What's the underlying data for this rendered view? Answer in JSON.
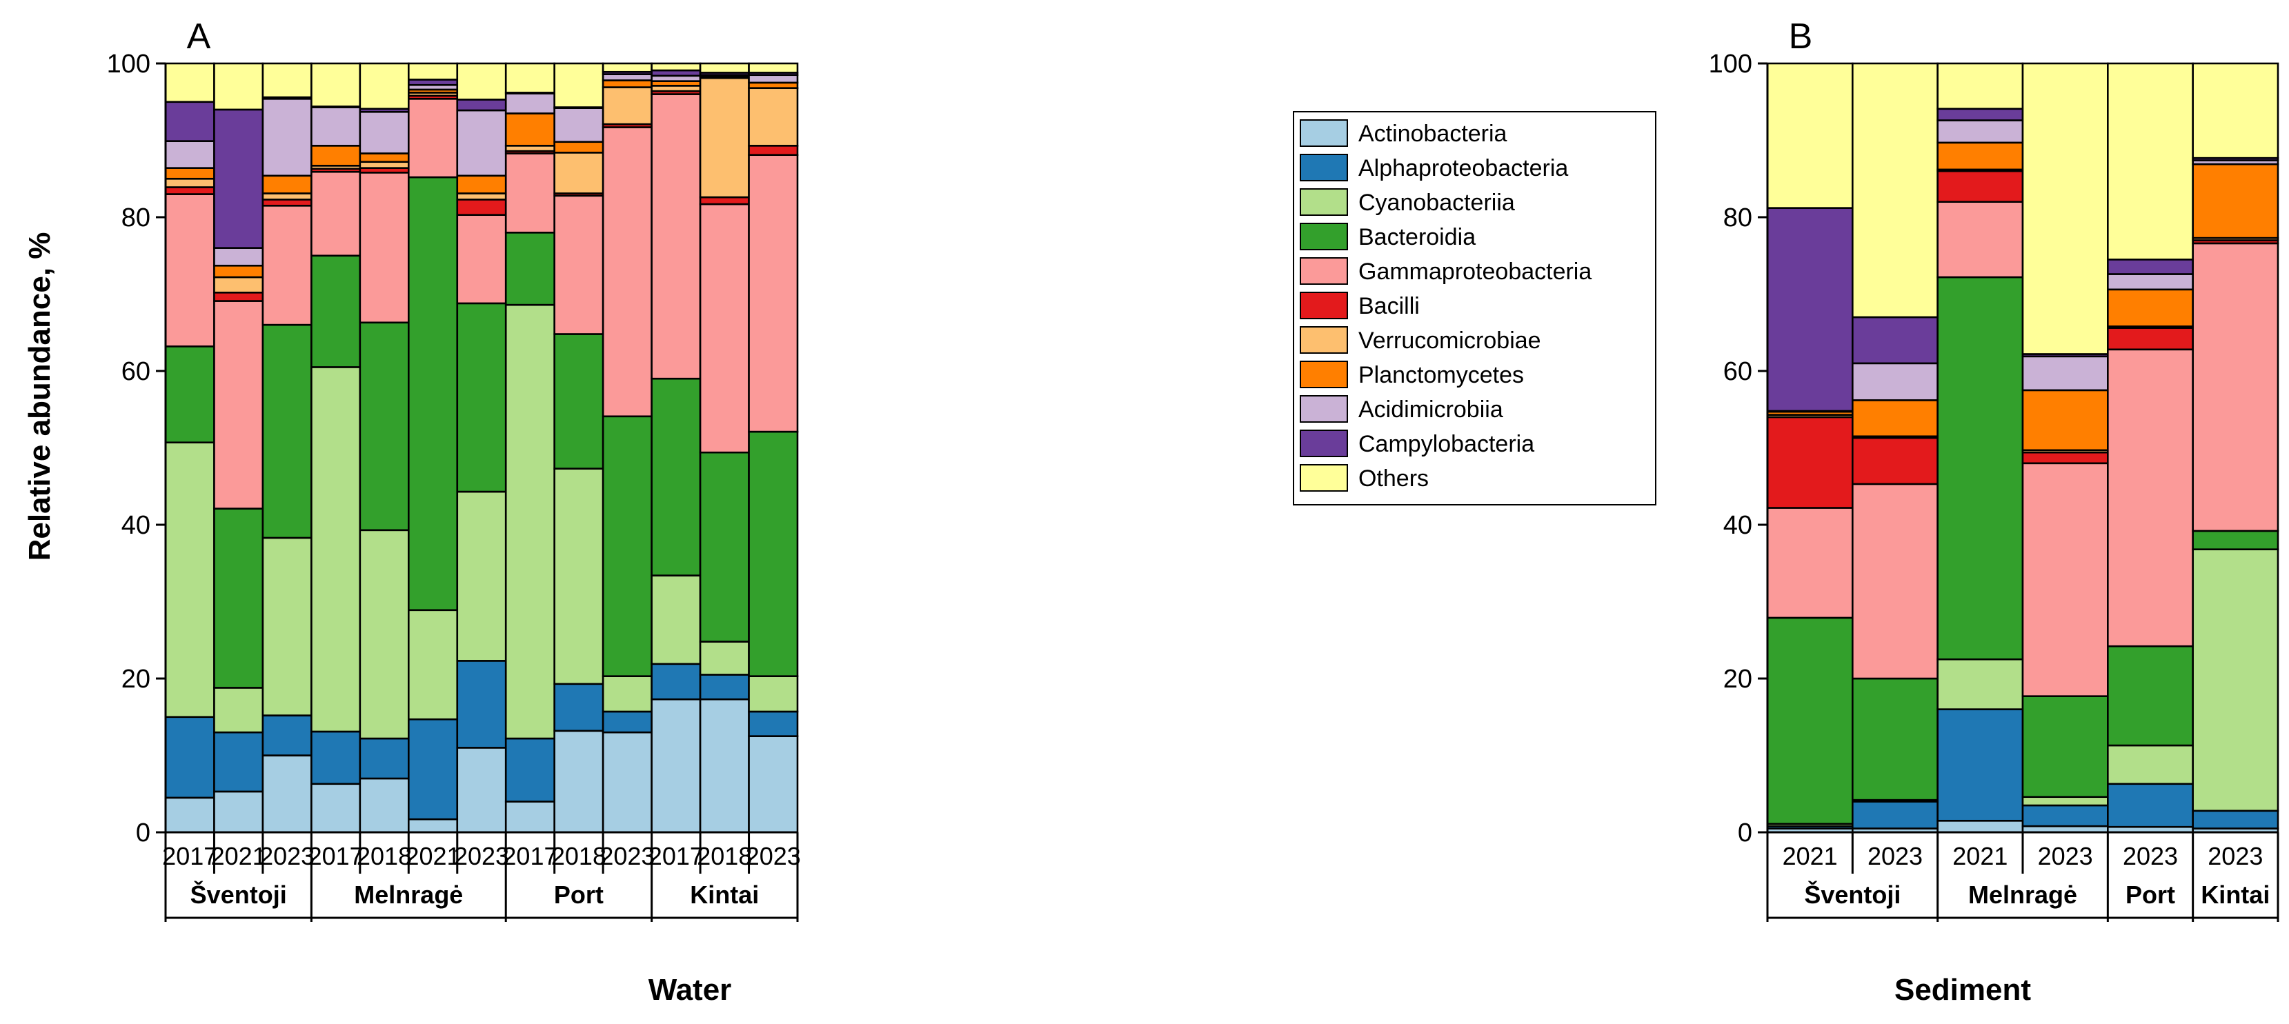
{
  "ylabel": "Relative abundance, %",
  "ylim": [
    0,
    100
  ],
  "yticks": [
    0,
    20,
    40,
    60,
    80,
    100
  ],
  "legend": [
    {
      "name": "Actinobacteria",
      "color": "#a6cee3"
    },
    {
      "name": "Alphaproteobacteria",
      "color": "#1f78b4"
    },
    {
      "name": "Cyanobacteriia",
      "color": "#b2df8a"
    },
    {
      "name": "Bacteroidia",
      "color": "#33a02c"
    },
    {
      "name": "Gammaproteobacteria",
      "color": "#fb9a99"
    },
    {
      "name": "Bacilli",
      "color": "#e31a1c"
    },
    {
      "name": "Verrucomicrobiae",
      "color": "#fdbf6f"
    },
    {
      "name": "Planctomycetes",
      "color": "#ff7f00"
    },
    {
      "name": "Acidimicrobiia",
      "color": "#cab2d6"
    },
    {
      "name": "Campylobacteria",
      "color": "#6a3d9a"
    },
    {
      "name": "Others",
      "color": "#ffff99"
    }
  ],
  "chart_data": [
    {
      "type": "bar",
      "stacked": true,
      "panel": "A",
      "title": "Water",
      "xlabel": "Water",
      "ylabel": "Relative abundance, %",
      "ylim": [
        0,
        100
      ],
      "categories": [
        "2017",
        "2021",
        "2023",
        "2017",
        "2018",
        "2021",
        "2023",
        "2017",
        "2018",
        "2023",
        "2017",
        "2018",
        "2023"
      ],
      "groups": [
        {
          "name": "Šventoji",
          "count": 3
        },
        {
          "name": "Melnragė",
          "count": 4
        },
        {
          "name": "Port",
          "count": 3
        },
        {
          "name": "Kintai",
          "count": 3
        }
      ],
      "series": [
        {
          "name": "Actinobacteria",
          "values": [
            4.5,
            5.3,
            10.0,
            6.3,
            7.0,
            1.7,
            11.0,
            4.0,
            13.2,
            13.0,
            17.3,
            17.3,
            12.5
          ]
        },
        {
          "name": "Alphaproteobacteria",
          "values": [
            10.5,
            7.7,
            5.2,
            6.8,
            5.2,
            13.0,
            11.3,
            8.2,
            6.1,
            2.7,
            4.6,
            3.2,
            3.2
          ]
        },
        {
          "name": "Cyanobacteriia",
          "values": [
            35.7,
            5.8,
            23.1,
            47.4,
            27.1,
            14.2,
            22.0,
            56.4,
            28.0,
            4.6,
            11.5,
            4.3,
            4.6
          ]
        },
        {
          "name": "Bacteroidia",
          "values": [
            12.5,
            23.3,
            27.7,
            14.5,
            27.0,
            56.3,
            24.5,
            9.4,
            17.5,
            33.8,
            25.6,
            24.6,
            31.8
          ]
        },
        {
          "name": "Gammaproteobacteria",
          "values": [
            19.8,
            27.0,
            15.5,
            10.9,
            19.5,
            10.2,
            11.5,
            10.3,
            18.0,
            37.6,
            37.0,
            32.3,
            36.0
          ]
        },
        {
          "name": "Bacilli",
          "values": [
            0.9,
            1.1,
            0.8,
            0.4,
            0.6,
            0.4,
            2.0,
            0.3,
            0.3,
            0.4,
            0.4,
            0.9,
            1.2
          ]
        },
        {
          "name": "Verrucomicrobiae",
          "values": [
            1.1,
            2.0,
            0.8,
            0.4,
            0.8,
            0.4,
            0.8,
            0.7,
            5.3,
            4.8,
            0.7,
            15.5,
            7.5
          ]
        },
        {
          "name": "Planctomycetes",
          "values": [
            1.4,
            1.5,
            2.3,
            2.6,
            1.1,
            0.4,
            2.3,
            4.2,
            1.4,
            0.9,
            0.6,
            0.2,
            0.7
          ]
        },
        {
          "name": "Acidimicrobiia",
          "values": [
            3.5,
            2.3,
            10.0,
            5.0,
            5.4,
            0.6,
            8.5,
            2.6,
            4.4,
            0.8,
            0.7,
            0.2,
            1.0
          ]
        },
        {
          "name": "Campylobacteria",
          "values": [
            5.1,
            18.0,
            0.2,
            0.1,
            0.4,
            0.7,
            1.4,
            0.1,
            0.1,
            0.3,
            0.7,
            0.3,
            0.3
          ]
        },
        {
          "name": "Others",
          "values": [
            5.0,
            6.0,
            4.4,
            5.6,
            5.9,
            2.1,
            4.7,
            3.8,
            5.7,
            1.1,
            0.9,
            1.2,
            1.2
          ]
        }
      ]
    },
    {
      "type": "bar",
      "stacked": true,
      "panel": "B",
      "title": "Sediment",
      "xlabel": "Sediment",
      "ylabel": "",
      "ylim": [
        0,
        100
      ],
      "categories": [
        "2021",
        "2023",
        "2021",
        "2023",
        "2023",
        "2023"
      ],
      "groups": [
        {
          "name": "Šventoji",
          "count": 2
        },
        {
          "name": "Melnragė",
          "count": 2
        },
        {
          "name": "Port",
          "count": 1
        },
        {
          "name": "Kintai",
          "count": 1
        }
      ],
      "series": [
        {
          "name": "Actinobacteria",
          "values": [
            0.5,
            0.5,
            1.5,
            0.8,
            0.7,
            0.5
          ]
        },
        {
          "name": "Alphaproteobacteria",
          "values": [
            0.3,
            3.5,
            14.5,
            2.7,
            5.6,
            2.3
          ]
        },
        {
          "name": "Cyanobacteriia",
          "values": [
            0.3,
            0.2,
            6.5,
            1.1,
            5.0,
            34.0
          ]
        },
        {
          "name": "Bacteroidia",
          "values": [
            26.8,
            15.8,
            49.7,
            13.1,
            12.9,
            2.4
          ]
        },
        {
          "name": "Gammaproteobacteria",
          "values": [
            14.3,
            25.3,
            9.8,
            30.3,
            38.6,
            37.4
          ]
        },
        {
          "name": "Bacilli",
          "values": [
            11.8,
            6.0,
            4.0,
            1.4,
            2.8,
            0.4
          ]
        },
        {
          "name": "Verrucomicrobiae",
          "values": [
            0.3,
            0.2,
            0.2,
            0.3,
            0.2,
            0.3
          ]
        },
        {
          "name": "Planctomycetes",
          "values": [
            0.4,
            4.7,
            3.5,
            7.8,
            4.8,
            9.6
          ]
        },
        {
          "name": "Acidimicrobiia",
          "values": [
            0.1,
            4.8,
            2.9,
            4.4,
            2.0,
            0.5
          ]
        },
        {
          "name": "Campylobacteria",
          "values": [
            26.4,
            6.0,
            1.5,
            0.3,
            1.9,
            0.3
          ]
        },
        {
          "name": "Others",
          "values": [
            18.8,
            33.0,
            5.9,
            37.8,
            25.5,
            12.3
          ]
        }
      ]
    }
  ]
}
